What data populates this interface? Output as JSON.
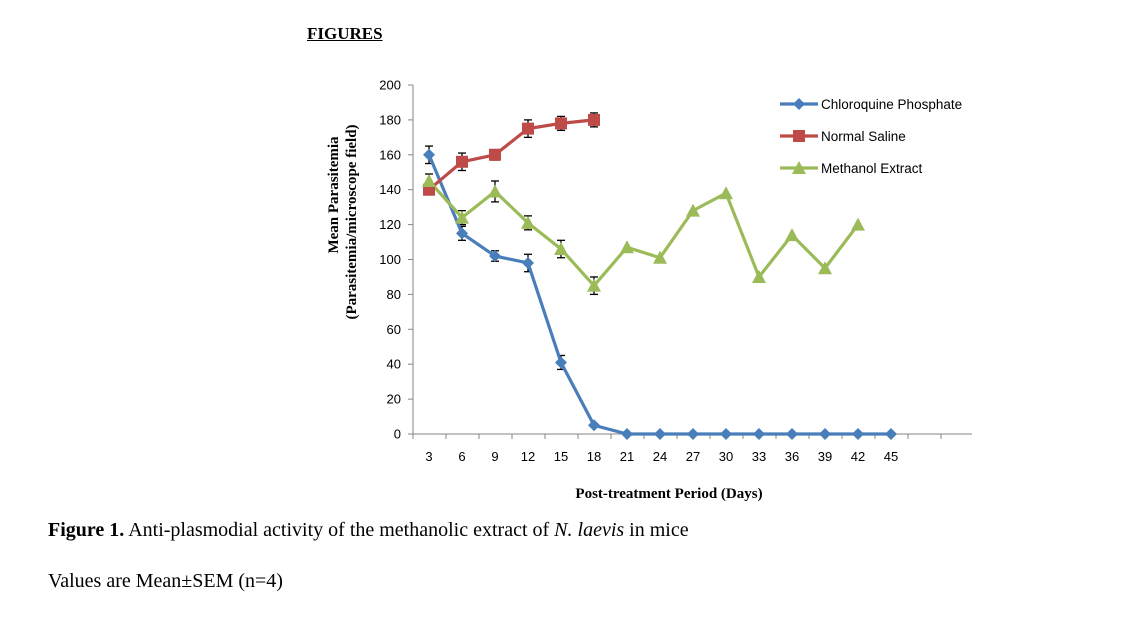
{
  "heading": "FIGURES",
  "caption": {
    "label": "Figure 1.",
    "text_before": " Anti-plasmodial activity of the methanolic extract of ",
    "species": "N. laevis",
    "text_after": " in mice"
  },
  "note": "Values are Mean±SEM (n=4)",
  "chart_data": {
    "type": "line",
    "title": "",
    "xlabel": "Post-treatment Period (Days)",
    "ylabel": "Mean Parasitemia",
    "ylabel_sub": "(Parasitemia/microscope field)",
    "categories": [
      "3",
      "6",
      "9",
      "12",
      "15",
      "18",
      "21",
      "24",
      "27",
      "30",
      "33",
      "36",
      "39",
      "42",
      "45"
    ],
    "ylim": [
      0,
      200
    ],
    "yticks": [
      0,
      20,
      40,
      60,
      80,
      100,
      120,
      140,
      160,
      180,
      200
    ],
    "grid": false,
    "legend_position": "top-right",
    "series": [
      {
        "name": "Chloroquine Phosphate",
        "color": "#4a7ebb",
        "marker": "diamond",
        "values": [
          160,
          115,
          102,
          98,
          41,
          5,
          0,
          0,
          0,
          0,
          0,
          0,
          0,
          0,
          0
        ],
        "errors": [
          5,
          4,
          3,
          5,
          4,
          null,
          null,
          null,
          null,
          null,
          null,
          null,
          null,
          null,
          null
        ]
      },
      {
        "name": "Normal Saline",
        "color": "#be4b48",
        "marker": "square",
        "values": [
          140,
          156,
          160,
          175,
          178,
          180,
          null,
          null,
          null,
          null,
          null,
          null,
          null,
          null,
          null
        ],
        "errors": [
          3,
          5,
          3,
          5,
          4,
          4,
          null,
          null,
          null,
          null,
          null,
          null,
          null,
          null,
          null
        ]
      },
      {
        "name": "Methanol Extract",
        "color": "#9bbb59",
        "marker": "triangle",
        "values": [
          145,
          124,
          139,
          121,
          106,
          85,
          107,
          101,
          128,
          138,
          90,
          114,
          95,
          120,
          null
        ],
        "errors": [
          4,
          4,
          6,
          4,
          5,
          5,
          null,
          null,
          null,
          null,
          null,
          null,
          null,
          null,
          null
        ]
      }
    ]
  }
}
